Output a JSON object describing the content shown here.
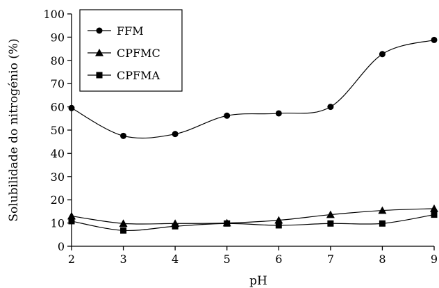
{
  "chart_data": {
    "type": "line",
    "xlabel": "pH",
    "ylabel": "Solubilidade do nitrogénio (%)",
    "x": [
      2,
      3,
      4,
      5,
      6,
      7,
      8,
      9
    ],
    "xlim": [
      2,
      9
    ],
    "ylim": [
      0,
      100
    ],
    "xticks": [
      "2",
      "3",
      "4",
      "5",
      "6",
      "7",
      "8",
      "9"
    ],
    "yticks": [
      "0",
      "10",
      "20",
      "30",
      "40",
      "50",
      "60",
      "70",
      "80",
      "90",
      "100"
    ],
    "grid": false,
    "legend_position": "top-left",
    "series": [
      {
        "name": "FFM",
        "marker": "circle",
        "values": [
          59.5,
          47.5,
          48.3,
          56.2,
          57.2,
          60.0,
          82.7,
          88.8
        ]
      },
      {
        "name": "CPFMC",
        "marker": "triangle",
        "values": [
          13.0,
          9.8,
          9.8,
          10.0,
          11.2,
          13.6,
          15.4,
          16.2
        ]
      },
      {
        "name": "CPFMA",
        "marker": "square",
        "values": [
          10.8,
          6.8,
          8.6,
          9.8,
          9.0,
          9.8,
          9.8,
          13.6
        ]
      }
    ]
  }
}
